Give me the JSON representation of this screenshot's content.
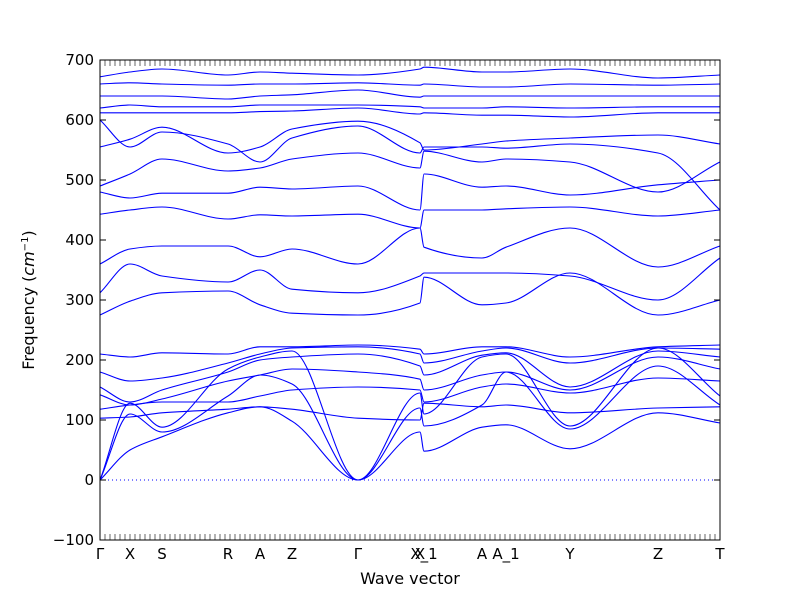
{
  "chart_data": {
    "type": "line",
    "xlabel": "Wave vector",
    "ylabel_text": "Frequency (",
    "ylabel_unit": "cm",
    "ylabel_exp": "−1",
    "ylabel_close": ")",
    "ylim": [
      -100,
      700
    ],
    "yticks": [
      -100,
      0,
      100,
      200,
      300,
      400,
      500,
      600,
      700
    ],
    "xlim": [
      0,
      1
    ],
    "high_symmetry_points": [
      {
        "label": "Γ",
        "x": 0.0
      },
      {
        "label": "X",
        "x": 0.0484
      },
      {
        "label": "S",
        "x": 0.1
      },
      {
        "label": "R",
        "x": 0.2065
      },
      {
        "label": "A",
        "x": 0.2581
      },
      {
        "label": "Z",
        "x": 0.3097
      },
      {
        "label": "Γ",
        "x": 0.4161
      },
      {
        "label": "X",
        "x": 0.5161
      },
      {
        "label": "X_1",
        "x": 0.5226
      },
      {
        "label": "A",
        "x": 0.6161
      },
      {
        "label": "A_1",
        "x": 0.6548
      },
      {
        "label": "Y",
        "x": 0.7581
      },
      {
        "label": "Z",
        "x": 0.9
      },
      {
        "label": "T",
        "x": 1.0
      }
    ],
    "zero_line": 0,
    "line_color": "#0000ff",
    "series": [
      {
        "x": [
          0,
          0.0484,
          0.1,
          0.2065,
          0.2581,
          0.3097,
          0.4161,
          0.5161,
          0.5226,
          0.6161,
          0.6548,
          0.7581,
          0.9,
          1.0
        ],
        "y": [
          0,
          50,
          72,
          112,
          122,
          98,
          0,
          80,
          48,
          88,
          92,
          52,
          112,
          95
        ]
      },
      {
        "x": [
          0,
          0.0484,
          0.1,
          0.2065,
          0.2581,
          0.3097,
          0.4161,
          0.5161,
          0.5226,
          0.6161,
          0.6548,
          0.7581,
          0.9,
          1.0
        ],
        "y": [
          0,
          110,
          80,
          140,
          175,
          160,
          0,
          120,
          90,
          125,
          180,
          85,
          190,
          125
        ]
      },
      {
        "x": [
          0,
          0.0484,
          0.1,
          0.2065,
          0.2581,
          0.3097,
          0.4161,
          0.5161,
          0.5226,
          0.6161,
          0.6548,
          0.7581,
          0.9,
          1.0
        ],
        "y": [
          0,
          128,
          88,
          185,
          205,
          215,
          0,
          145,
          110,
          205,
          210,
          90,
          220,
          140
        ]
      },
      {
        "x": [
          0,
          0.0484,
          0.1,
          0.2065,
          0.2581,
          0.3097,
          0.4161,
          0.5161,
          0.5226,
          0.6161,
          0.6548,
          0.7581,
          0.9,
          1.0
        ],
        "y": [
          103,
          105,
          112,
          118,
          122,
          118,
          103,
          100,
          128,
          122,
          125,
          112,
          120,
          122
        ]
      },
      {
        "x": [
          0,
          0.0484,
          0.1,
          0.2065,
          0.2581,
          0.3097,
          0.4161,
          0.5161,
          0.5226,
          0.6161,
          0.6548,
          0.7581,
          0.9,
          1.0
        ],
        "y": [
          118,
          125,
          130,
          130,
          140,
          150,
          155,
          150,
          130,
          155,
          160,
          145,
          170,
          165
        ]
      },
      {
        "x": [
          0,
          0.0484,
          0.1,
          0.2065,
          0.2581,
          0.3097,
          0.4161,
          0.5161,
          0.5226,
          0.6161,
          0.6548,
          0.7581,
          0.9,
          1.0
        ],
        "y": [
          142,
          125,
          135,
          165,
          175,
          185,
          180,
          168,
          150,
          175,
          180,
          150,
          205,
          185
        ]
      },
      {
        "x": [
          0,
          0.0484,
          0.1,
          0.2065,
          0.2581,
          0.3097,
          0.4161,
          0.5161,
          0.5226,
          0.6161,
          0.6548,
          0.7581,
          0.9,
          1.0
        ],
        "y": [
          155,
          130,
          150,
          180,
          200,
          205,
          210,
          190,
          175,
          208,
          212,
          155,
          215,
          205
        ]
      },
      {
        "x": [
          0,
          0.0484,
          0.1,
          0.2065,
          0.2581,
          0.3097,
          0.4161,
          0.5161,
          0.5226,
          0.6161,
          0.6548,
          0.7581,
          0.9,
          1.0
        ],
        "y": [
          180,
          165,
          170,
          195,
          210,
          220,
          222,
          210,
          195,
          215,
          220,
          195,
          220,
          218
        ]
      },
      {
        "x": [
          0,
          0.0484,
          0.1,
          0.2065,
          0.2581,
          0.3097,
          0.4161,
          0.5161,
          0.5226,
          0.6161,
          0.6548,
          0.7581,
          0.9,
          1.0
        ],
        "y": [
          210,
          205,
          212,
          210,
          222,
          222,
          225,
          218,
          210,
          222,
          222,
          205,
          222,
          225
        ]
      },
      {
        "x": [
          0,
          0.0484,
          0.1,
          0.2065,
          0.2581,
          0.3097,
          0.4161,
          0.5161,
          0.5226,
          0.6161,
          0.6548,
          0.7581,
          0.9,
          1.0
        ],
        "y": [
          275,
          298,
          312,
          315,
          292,
          278,
          275,
          295,
          338,
          292,
          295,
          345,
          275,
          300
        ]
      },
      {
        "x": [
          0,
          0.0484,
          0.1,
          0.2065,
          0.2581,
          0.3097,
          0.4161,
          0.5161,
          0.5226,
          0.6161,
          0.6548,
          0.7581,
          0.9,
          1.0
        ],
        "y": [
          312,
          360,
          340,
          330,
          350,
          318,
          312,
          340,
          345,
          345,
          345,
          340,
          300,
          370
        ]
      },
      {
        "x": [
          0,
          0.0484,
          0.1,
          0.2065,
          0.2581,
          0.3097,
          0.4161,
          0.5161,
          0.5226,
          0.6161,
          0.6548,
          0.7581,
          0.9,
          1.0
        ],
        "y": [
          360,
          385,
          390,
          390,
          372,
          385,
          360,
          420,
          388,
          370,
          388,
          420,
          355,
          390
        ]
      },
      {
        "x": [
          0,
          0.0484,
          0.1,
          0.2065,
          0.2581,
          0.3097,
          0.4161,
          0.5161,
          0.5226,
          0.6161,
          0.6548,
          0.7581,
          0.9,
          1.0
        ],
        "y": [
          443,
          450,
          455,
          435,
          442,
          440,
          443,
          420,
          450,
          450,
          452,
          455,
          440,
          450
        ]
      },
      {
        "x": [
          0,
          0.0484,
          0.1,
          0.2065,
          0.2581,
          0.3097,
          0.4161,
          0.5161,
          0.5226,
          0.6161,
          0.6548,
          0.7581,
          0.9,
          1.0
        ],
        "y": [
          480,
          470,
          478,
          478,
          488,
          485,
          490,
          450,
          510,
          488,
          490,
          475,
          492,
          500
        ]
      },
      {
        "x": [
          0,
          0.0484,
          0.1,
          0.2065,
          0.2581,
          0.3097,
          0.4161,
          0.5161,
          0.5226,
          0.6161,
          0.6548,
          0.7581,
          0.9,
          1.0
        ],
        "y": [
          490,
          510,
          535,
          515,
          520,
          535,
          545,
          520,
          548,
          530,
          535,
          530,
          480,
          530
        ]
      },
      {
        "x": [
          0,
          0.0484,
          0.1,
          0.2065,
          0.2581,
          0.3097,
          0.4161,
          0.5161,
          0.5226,
          0.6161,
          0.6548,
          0.7581,
          0.9,
          1.0
        ],
        "y": [
          555,
          568,
          588,
          545,
          555,
          585,
          598,
          562,
          550,
          560,
          565,
          570,
          575,
          560
        ]
      },
      {
        "x": [
          0,
          0.0484,
          0.1,
          0.2065,
          0.2581,
          0.3097,
          0.4161,
          0.5161,
          0.5226,
          0.6161,
          0.6548,
          0.7581,
          0.9,
          1.0
        ],
        "y": [
          600,
          555,
          580,
          560,
          530,
          570,
          590,
          545,
          555,
          555,
          553,
          560,
          545,
          450
        ]
      },
      {
        "x": [
          0,
          0.0484,
          0.1,
          0.2065,
          0.2581,
          0.3097,
          0.4161,
          0.5161,
          0.5226,
          0.6161,
          0.6548,
          0.7581,
          0.9,
          1.0
        ],
        "y": [
          612,
          612,
          612,
          612,
          614,
          615,
          620,
          610,
          612,
          608,
          608,
          605,
          612,
          612
        ]
      },
      {
        "x": [
          0,
          0.0484,
          0.1,
          0.2065,
          0.2581,
          0.3097,
          0.4161,
          0.5161,
          0.5226,
          0.6161,
          0.6548,
          0.7581,
          0.9,
          1.0
        ],
        "y": [
          620,
          625,
          622,
          622,
          625,
          625,
          625,
          622,
          620,
          620,
          622,
          620,
          622,
          622
        ]
      },
      {
        "x": [
          0,
          0.0484,
          0.1,
          0.2065,
          0.2581,
          0.3097,
          0.4161,
          0.5161,
          0.5226,
          0.6161,
          0.6548,
          0.7581,
          0.9,
          1.0
        ],
        "y": [
          640,
          640,
          640,
          635,
          640,
          642,
          650,
          638,
          640,
          640,
          640,
          640,
          640,
          640
        ]
      },
      {
        "x": [
          0,
          0.0484,
          0.1,
          0.2065,
          0.2581,
          0.3097,
          0.4161,
          0.5161,
          0.5226,
          0.6161,
          0.6548,
          0.7581,
          0.9,
          1.0
        ],
        "y": [
          660,
          662,
          660,
          658,
          660,
          660,
          662,
          658,
          660,
          655,
          655,
          660,
          658,
          660
        ]
      },
      {
        "x": [
          0,
          0.0484,
          0.1,
          0.2065,
          0.2581,
          0.3097,
          0.4161,
          0.5161,
          0.5226,
          0.6161,
          0.6548,
          0.7581,
          0.9,
          1.0
        ],
        "y": [
          672,
          680,
          685,
          675,
          680,
          678,
          675,
          685,
          688,
          680,
          680,
          685,
          670,
          675
        ]
      }
    ]
  }
}
